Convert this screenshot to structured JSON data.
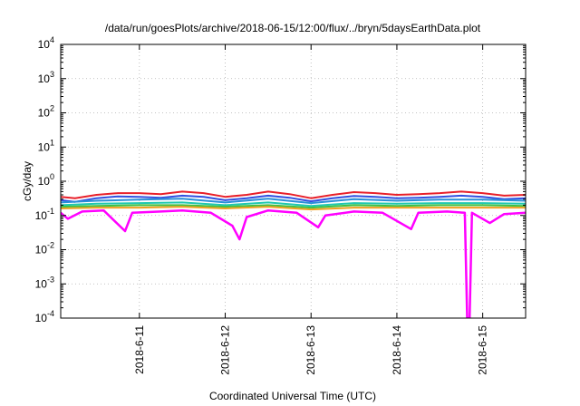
{
  "chart_data": {
    "type": "line",
    "title": "/data/run/goesPlots/archive/2018-06-15/12:00/flux/../bryn/5daysEarthData.plot",
    "xlabel": "Coordinated Universal Time (UTC)",
    "ylabel": "cGy/day",
    "yscale": "log",
    "ylim": [
      0.0001,
      10000
    ],
    "y_ticks": [
      {
        "value": 0.0001,
        "base": "10",
        "exp": "-4"
      },
      {
        "value": 0.001,
        "base": "10",
        "exp": "-3"
      },
      {
        "value": 0.01,
        "base": "10",
        "exp": "-2"
      },
      {
        "value": 0.1,
        "base": "10",
        "exp": "-1"
      },
      {
        "value": 1,
        "base": "10",
        "exp": "0"
      },
      {
        "value": 10,
        "base": "10",
        "exp": "1"
      },
      {
        "value": 100,
        "base": "10",
        "exp": "2"
      },
      {
        "value": 1000,
        "base": "10",
        "exp": "3"
      },
      {
        "value": 10000,
        "base": "10",
        "exp": "4"
      }
    ],
    "xlim": [
      "2018-06-10 02:00",
      "2018-06-15 12:00"
    ],
    "x_ticks": [
      {
        "value": "2018-06-11 00:00",
        "label": "2018-6-11"
      },
      {
        "value": "2018-06-12 00:00",
        "label": "2018-6-12"
      },
      {
        "value": "2018-06-13 00:00",
        "label": "2018-6-13"
      },
      {
        "value": "2018-06-14 00:00",
        "label": "2018-6-14"
      },
      {
        "value": "2018-06-15 00:00",
        "label": "2018-6-15"
      }
    ],
    "grid": true,
    "series_colors": [
      "#e8202a",
      "#3050e0",
      "#2a8fd8",
      "#20c8b0",
      "#40c040",
      "#f0a020",
      "#ff00ff"
    ],
    "series": [
      {
        "values": [
          {
            "x": "2018-06-10 02:00",
            "y": 0.35
          },
          {
            "x": "2018-06-10 06:00",
            "y": 0.32
          },
          {
            "x": "2018-06-10 12:00",
            "y": 0.4
          },
          {
            "x": "2018-06-10 18:00",
            "y": 0.45
          },
          {
            "x": "2018-06-11 00:00",
            "y": 0.45
          },
          {
            "x": "2018-06-11 06:00",
            "y": 0.42
          },
          {
            "x": "2018-06-11 12:00",
            "y": 0.5
          },
          {
            "x": "2018-06-11 18:00",
            "y": 0.45
          },
          {
            "x": "2018-06-12 00:00",
            "y": 0.35
          },
          {
            "x": "2018-06-12 06:00",
            "y": 0.4
          },
          {
            "x": "2018-06-12 12:00",
            "y": 0.5
          },
          {
            "x": "2018-06-12 18:00",
            "y": 0.42
          },
          {
            "x": "2018-06-13 00:00",
            "y": 0.32
          },
          {
            "x": "2018-06-13 06:00",
            "y": 0.4
          },
          {
            "x": "2018-06-13 12:00",
            "y": 0.48
          },
          {
            "x": "2018-06-13 18:00",
            "y": 0.45
          },
          {
            "x": "2018-06-14 00:00",
            "y": 0.4
          },
          {
            "x": "2018-06-14 06:00",
            "y": 0.42
          },
          {
            "x": "2018-06-14 12:00",
            "y": 0.45
          },
          {
            "x": "2018-06-14 18:00",
            "y": 0.5
          },
          {
            "x": "2018-06-15 00:00",
            "y": 0.45
          },
          {
            "x": "2018-06-15 06:00",
            "y": 0.38
          },
          {
            "x": "2018-06-15 12:00",
            "y": 0.4
          }
        ]
      },
      {
        "values": [
          {
            "x": "2018-06-10 02:00",
            "y": 0.28
          },
          {
            "x": "2018-06-10 06:00",
            "y": 0.25
          },
          {
            "x": "2018-06-10 12:00",
            "y": 0.32
          },
          {
            "x": "2018-06-10 18:00",
            "y": 0.36
          },
          {
            "x": "2018-06-11 00:00",
            "y": 0.35
          },
          {
            "x": "2018-06-11 06:00",
            "y": 0.33
          },
          {
            "x": "2018-06-11 12:00",
            "y": 0.38
          },
          {
            "x": "2018-06-11 18:00",
            "y": 0.35
          },
          {
            "x": "2018-06-12 00:00",
            "y": 0.28
          },
          {
            "x": "2018-06-12 06:00",
            "y": 0.32
          },
          {
            "x": "2018-06-12 12:00",
            "y": 0.38
          },
          {
            "x": "2018-06-12 18:00",
            "y": 0.33
          },
          {
            "x": "2018-06-13 00:00",
            "y": 0.26
          },
          {
            "x": "2018-06-13 06:00",
            "y": 0.32
          },
          {
            "x": "2018-06-13 12:00",
            "y": 0.37
          },
          {
            "x": "2018-06-13 18:00",
            "y": 0.35
          },
          {
            "x": "2018-06-14 00:00",
            "y": 0.32
          },
          {
            "x": "2018-06-14 06:00",
            "y": 0.33
          },
          {
            "x": "2018-06-14 12:00",
            "y": 0.35
          },
          {
            "x": "2018-06-14 18:00",
            "y": 0.38
          },
          {
            "x": "2018-06-15 00:00",
            "y": 0.35
          },
          {
            "x": "2018-06-15 06:00",
            "y": 0.3
          },
          {
            "x": "2018-06-15 12:00",
            "y": 0.32
          }
        ]
      },
      {
        "values": [
          {
            "x": "2018-06-10 02:00",
            "y": 0.24
          },
          {
            "x": "2018-06-10 12:00",
            "y": 0.27
          },
          {
            "x": "2018-06-11 00:00",
            "y": 0.29
          },
          {
            "x": "2018-06-11 12:00",
            "y": 0.31
          },
          {
            "x": "2018-06-12 00:00",
            "y": 0.24
          },
          {
            "x": "2018-06-12 12:00",
            "y": 0.31
          },
          {
            "x": "2018-06-13 00:00",
            "y": 0.23
          },
          {
            "x": "2018-06-13 12:00",
            "y": 0.3
          },
          {
            "x": "2018-06-14 00:00",
            "y": 0.27
          },
          {
            "x": "2018-06-14 12:00",
            "y": 0.29
          },
          {
            "x": "2018-06-15 00:00",
            "y": 0.29
          },
          {
            "x": "2018-06-15 12:00",
            "y": 0.27
          }
        ]
      },
      {
        "values": [
          {
            "x": "2018-06-10 02:00",
            "y": 0.2
          },
          {
            "x": "2018-06-10 12:00",
            "y": 0.22
          },
          {
            "x": "2018-06-11 00:00",
            "y": 0.23
          },
          {
            "x": "2018-06-11 12:00",
            "y": 0.24
          },
          {
            "x": "2018-06-12 00:00",
            "y": 0.2
          },
          {
            "x": "2018-06-12 12:00",
            "y": 0.24
          },
          {
            "x": "2018-06-13 00:00",
            "y": 0.19
          },
          {
            "x": "2018-06-13 12:00",
            "y": 0.23
          },
          {
            "x": "2018-06-14 00:00",
            "y": 0.22
          },
          {
            "x": "2018-06-14 12:00",
            "y": 0.23
          },
          {
            "x": "2018-06-15 00:00",
            "y": 0.23
          },
          {
            "x": "2018-06-15 12:00",
            "y": 0.22
          }
        ]
      },
      {
        "values": [
          {
            "x": "2018-06-10 02:00",
            "y": 0.18
          },
          {
            "x": "2018-06-10 12:00",
            "y": 0.19
          },
          {
            "x": "2018-06-11 00:00",
            "y": 0.2
          },
          {
            "x": "2018-06-11 12:00",
            "y": 0.2
          },
          {
            "x": "2018-06-12 00:00",
            "y": 0.18
          },
          {
            "x": "2018-06-12 12:00",
            "y": 0.2
          },
          {
            "x": "2018-06-13 00:00",
            "y": 0.17
          },
          {
            "x": "2018-06-13 12:00",
            "y": 0.2
          },
          {
            "x": "2018-06-14 00:00",
            "y": 0.19
          },
          {
            "x": "2018-06-14 12:00",
            "y": 0.2
          },
          {
            "x": "2018-06-15 00:00",
            "y": 0.2
          },
          {
            "x": "2018-06-15 12:00",
            "y": 0.19
          }
        ]
      },
      {
        "values": [
          {
            "x": "2018-06-10 02:00",
            "y": 0.16
          },
          {
            "x": "2018-06-10 12:00",
            "y": 0.17
          },
          {
            "x": "2018-06-11 00:00",
            "y": 0.17
          },
          {
            "x": "2018-06-11 12:00",
            "y": 0.18
          },
          {
            "x": "2018-06-12 00:00",
            "y": 0.16
          },
          {
            "x": "2018-06-12 12:00",
            "y": 0.18
          },
          {
            "x": "2018-06-13 00:00",
            "y": 0.15
          },
          {
            "x": "2018-06-13 12:00",
            "y": 0.17
          },
          {
            "x": "2018-06-14 00:00",
            "y": 0.17
          },
          {
            "x": "2018-06-14 12:00",
            "y": 0.17
          },
          {
            "x": "2018-06-15 00:00",
            "y": 0.17
          },
          {
            "x": "2018-06-15 12:00",
            "y": 0.17
          }
        ]
      },
      {
        "values": [
          {
            "x": "2018-06-10 02:00",
            "y": 0.12
          },
          {
            "x": "2018-06-10 04:00",
            "y": 0.08
          },
          {
            "x": "2018-06-10 08:00",
            "y": 0.13
          },
          {
            "x": "2018-06-10 14:00",
            "y": 0.14
          },
          {
            "x": "2018-06-10 20:00",
            "y": 0.035
          },
          {
            "x": "2018-06-10 22:00",
            "y": 0.12
          },
          {
            "x": "2018-06-11 06:00",
            "y": 0.13
          },
          {
            "x": "2018-06-11 12:00",
            "y": 0.14
          },
          {
            "x": "2018-06-11 20:00",
            "y": 0.12
          },
          {
            "x": "2018-06-12 02:00",
            "y": 0.05
          },
          {
            "x": "2018-06-12 04:00",
            "y": 0.02
          },
          {
            "x": "2018-06-12 06:00",
            "y": 0.09
          },
          {
            "x": "2018-06-12 12:00",
            "y": 0.14
          },
          {
            "x": "2018-06-12 20:00",
            "y": 0.12
          },
          {
            "x": "2018-06-13 02:00",
            "y": 0.045
          },
          {
            "x": "2018-06-13 04:00",
            "y": 0.1
          },
          {
            "x": "2018-06-13 12:00",
            "y": 0.13
          },
          {
            "x": "2018-06-13 20:00",
            "y": 0.12
          },
          {
            "x": "2018-06-14 04:00",
            "y": 0.04
          },
          {
            "x": "2018-06-14 06:00",
            "y": 0.12
          },
          {
            "x": "2018-06-14 14:00",
            "y": 0.13
          },
          {
            "x": "2018-06-14 19:00",
            "y": 0.12
          },
          {
            "x": "2018-06-14 19:40",
            "y": 0.0001
          },
          {
            "x": "2018-06-14 20:20",
            "y": 0.0001
          },
          {
            "x": "2018-06-14 21:00",
            "y": 0.12
          },
          {
            "x": "2018-06-15 02:00",
            "y": 0.06
          },
          {
            "x": "2018-06-15 06:00",
            "y": 0.11
          },
          {
            "x": "2018-06-15 12:00",
            "y": 0.12
          }
        ]
      }
    ]
  }
}
